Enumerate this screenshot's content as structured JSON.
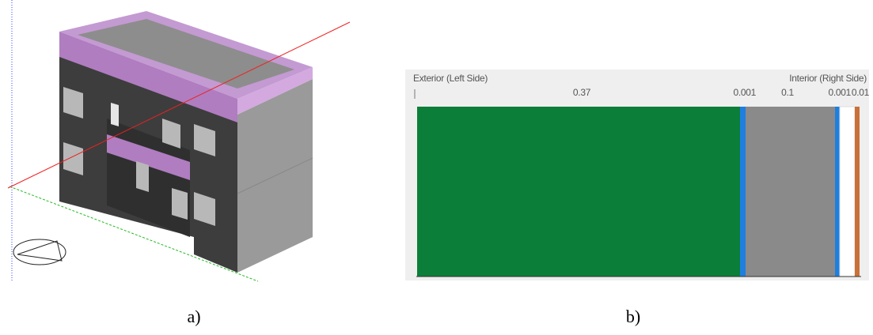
{
  "panel_a": {
    "caption": "a)"
  },
  "panel_b": {
    "caption": "b)",
    "exterior_label": "Exterior (Left Side)",
    "interior_label": "Interior (Right Side)",
    "layers": [
      {
        "label": "0.37",
        "color": "#0b7f3a"
      },
      {
        "label": "0.001",
        "color": "#1e7fe0"
      },
      {
        "label": "0.1",
        "color": "#8a8a8a"
      },
      {
        "label": "0.001",
        "color": "#1e7fe0"
      },
      {
        "label": "0.01",
        "color": "#ffffff"
      },
      {
        "color": "#c8713a"
      }
    ]
  }
}
